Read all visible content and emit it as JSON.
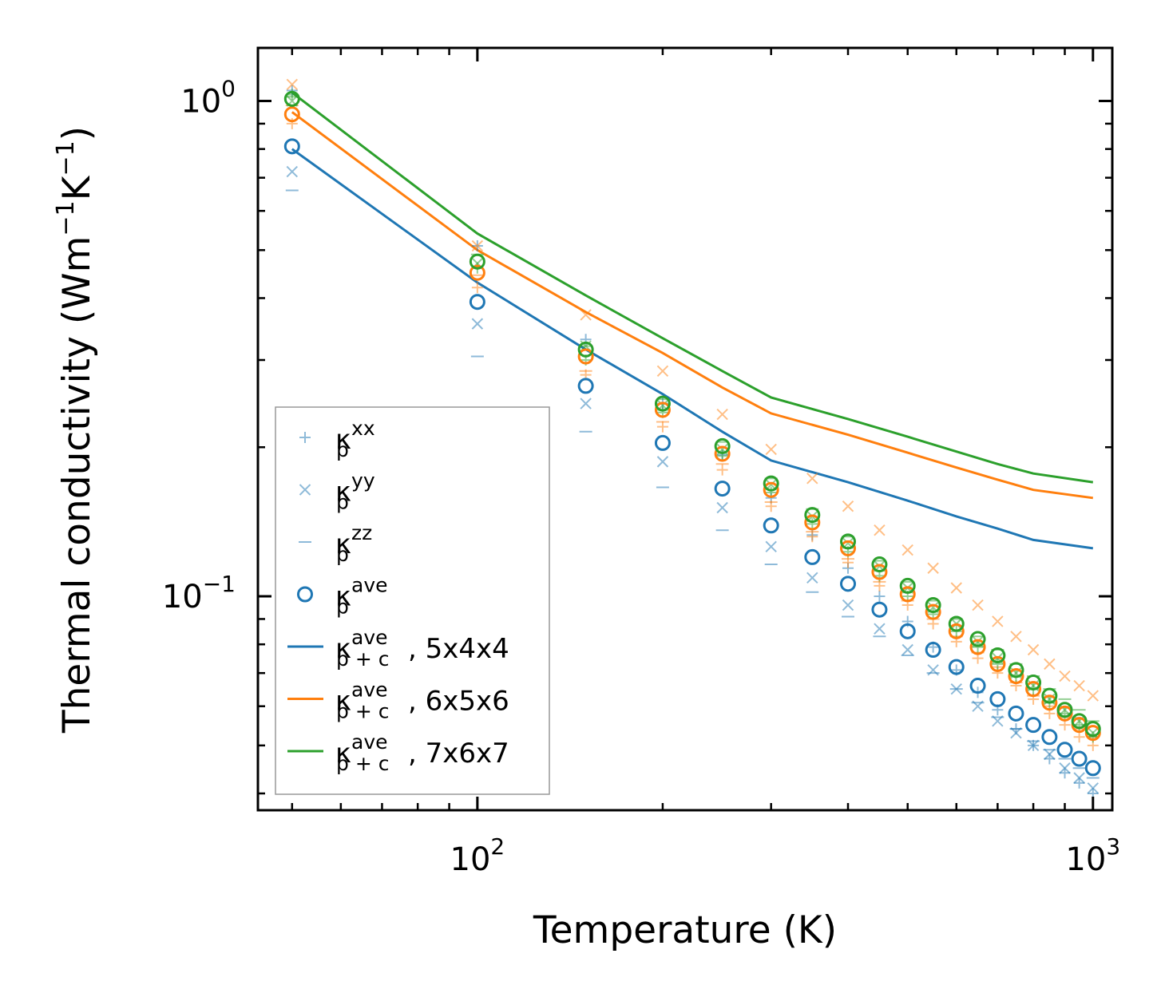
{
  "chart_data": {
    "type": "scatter",
    "xlabel": "Temperature (K)",
    "ylabel": "Thermal conductivity (Wm⁻¹K⁻¹)",
    "ylabel_parts": {
      "before": "Thermal conductivity (Wm",
      "exp1": "−1",
      "mid": "K",
      "exp2": "−1",
      "after": ")"
    },
    "xscale": "log",
    "yscale": "log",
    "xlim": [
      44,
      1075
    ],
    "ylim": [
      0.037,
      1.28
    ],
    "x_ticks": [
      {
        "value": 100,
        "base": "10",
        "exp": "2"
      },
      {
        "value": 1000,
        "base": "10",
        "exp": "3"
      }
    ],
    "y_ticks": [
      {
        "value": 1,
        "base": "10",
        "exp": "0"
      },
      {
        "value": 0.1,
        "base": "10",
        "exp": "−1"
      }
    ],
    "x": [
      50,
      100,
      150,
      200,
      250,
      300,
      350,
      400,
      450,
      500,
      550,
      600,
      650,
      700,
      750,
      800,
      850,
      900,
      950,
      1000
    ],
    "colors": {
      "c5": "#1f77b4",
      "c6": "#ff7f0e",
      "c7": "#2ca02c"
    },
    "scatter_series": [
      {
        "name": "5x4x4",
        "color": "#1f77b4",
        "xx": [
          1.05,
          0.51,
          0.33,
          0.245,
          0.193,
          0.158,
          0.133,
          0.114,
          0.1,
          0.089,
          0.079,
          0.071,
          0.064,
          0.059,
          0.054,
          0.05,
          0.047,
          0.044,
          0.042,
          0.04
        ],
        "yy": [
          0.72,
          0.355,
          0.245,
          0.187,
          0.151,
          0.126,
          0.109,
          0.096,
          0.086,
          0.078,
          0.071,
          0.065,
          0.06,
          0.056,
          0.053,
          0.05,
          0.048,
          0.045,
          0.043,
          0.041
        ],
        "zz": [
          0.66,
          0.305,
          0.215,
          0.166,
          0.136,
          0.116,
          0.102,
          0.091,
          0.083,
          0.076,
          0.07,
          0.065,
          0.061,
          0.057,
          0.054,
          0.051,
          0.049,
          0.047,
          0.045,
          0.043
        ],
        "ave": [
          0.81,
          0.393,
          0.266,
          0.204,
          0.165,
          0.139,
          0.12,
          0.106,
          0.094,
          0.085,
          0.078,
          0.072,
          0.066,
          0.062,
          0.058,
          0.055,
          0.052,
          0.049,
          0.047,
          0.045
        ]
      },
      {
        "name": "6x5x6",
        "color": "#ff7f0e",
        "xx": [
          0.9,
          0.42,
          0.28,
          0.22,
          0.18,
          0.152,
          0.132,
          0.117,
          0.105,
          0.096,
          0.088,
          0.081,
          0.075,
          0.07,
          0.066,
          0.062,
          0.058,
          0.055,
          0.052,
          0.05
        ],
        "yy": [
          1.08,
          0.51,
          0.37,
          0.285,
          0.233,
          0.198,
          0.173,
          0.152,
          0.136,
          0.124,
          0.114,
          0.104,
          0.096,
          0.089,
          0.083,
          0.078,
          0.073,
          0.069,
          0.066,
          0.063
        ],
        "zz": [
          0.98,
          0.445,
          0.285,
          0.225,
          0.185,
          0.155,
          0.135,
          0.119,
          0.107,
          0.098,
          0.09,
          0.083,
          0.077,
          0.072,
          0.067,
          0.063,
          0.06,
          0.057,
          0.054,
          0.052
        ],
        "ave": [
          0.94,
          0.45,
          0.305,
          0.238,
          0.194,
          0.164,
          0.141,
          0.125,
          0.112,
          0.101,
          0.093,
          0.085,
          0.079,
          0.073,
          0.069,
          0.065,
          0.061,
          0.058,
          0.055,
          0.053
        ]
      },
      {
        "name": "7x6x7",
        "color": "#2ca02c",
        "xx": [
          1.03,
          0.46,
          0.3,
          0.235,
          0.192,
          0.162,
          0.14,
          0.123,
          0.11,
          0.1,
          0.092,
          0.085,
          0.079,
          0.073,
          0.069,
          0.065,
          0.061,
          0.058,
          0.055,
          0.052
        ],
        "yy": [
          1.0,
          0.47,
          0.32,
          0.243,
          0.198,
          0.168,
          0.145,
          0.128,
          0.115,
          0.104,
          0.095,
          0.088,
          0.081,
          0.075,
          0.07,
          0.066,
          0.062,
          0.059,
          0.056,
          0.053
        ],
        "zz": [
          1.02,
          0.49,
          0.32,
          0.25,
          0.205,
          0.173,
          0.15,
          0.132,
          0.118,
          0.107,
          0.098,
          0.09,
          0.083,
          0.078,
          0.073,
          0.069,
          0.065,
          0.062,
          0.059,
          0.056
        ],
        "ave": [
          1.01,
          0.474,
          0.315,
          0.245,
          0.201,
          0.169,
          0.146,
          0.129,
          0.116,
          0.105,
          0.096,
          0.088,
          0.082,
          0.076,
          0.071,
          0.067,
          0.063,
          0.059,
          0.056,
          0.054
        ]
      }
    ],
    "line_series": [
      {
        "name": "κ_p+c^ave, 5x4x4",
        "color": "#1f77b4",
        "y": [
          0.8,
          0.43,
          0.315,
          0.256,
          0.215,
          0.188,
          0.17,
          0.156,
          0.145,
          0.137,
          0.13,
          0.125
        ]
      },
      {
        "name": "κ_p+c^ave, 6x5x6",
        "color": "#ff7f0e",
        "y": [
          0.95,
          0.5,
          0.375,
          0.31,
          0.264,
          0.234,
          0.212,
          0.195,
          0.182,
          0.172,
          0.164,
          0.158
        ]
      },
      {
        "name": "κ_p+c^ave, 7x6x7",
        "color": "#2ca02c",
        "y": [
          1.04,
          0.54,
          0.405,
          0.332,
          0.285,
          0.252,
          0.228,
          0.21,
          0.196,
          0.185,
          0.177,
          0.17
        ]
      }
    ],
    "line_x": [
      50,
      100,
      150,
      200,
      250,
      300,
      400,
      500,
      600,
      700,
      800,
      1000
    ],
    "legend": {
      "placement": "lower-left",
      "entries": [
        {
          "kind": "plus",
          "symbol": "κ",
          "sub": "p",
          "sup": "xx",
          "suffix": ""
        },
        {
          "kind": "cross",
          "symbol": "κ",
          "sub": "p",
          "sup": "yy",
          "suffix": ""
        },
        {
          "kind": "dash",
          "symbol": "κ",
          "sub": "p",
          "sup": "zz",
          "suffix": ""
        },
        {
          "kind": "circle",
          "symbol": "κ",
          "sub": "p",
          "sup": "ave",
          "suffix": ""
        },
        {
          "kind": "line",
          "color": "#1f77b4",
          "symbol": "κ",
          "sub": "p + c",
          "sup": "ave",
          "suffix": ", 5x4x4"
        },
        {
          "kind": "line",
          "color": "#ff7f0e",
          "symbol": "κ",
          "sub": "p + c",
          "sup": "ave",
          "suffix": ", 6x5x6"
        },
        {
          "kind": "line",
          "color": "#2ca02c",
          "symbol": "κ",
          "sub": "p + c",
          "sup": "ave",
          "suffix": ", 7x6x7"
        }
      ]
    }
  }
}
